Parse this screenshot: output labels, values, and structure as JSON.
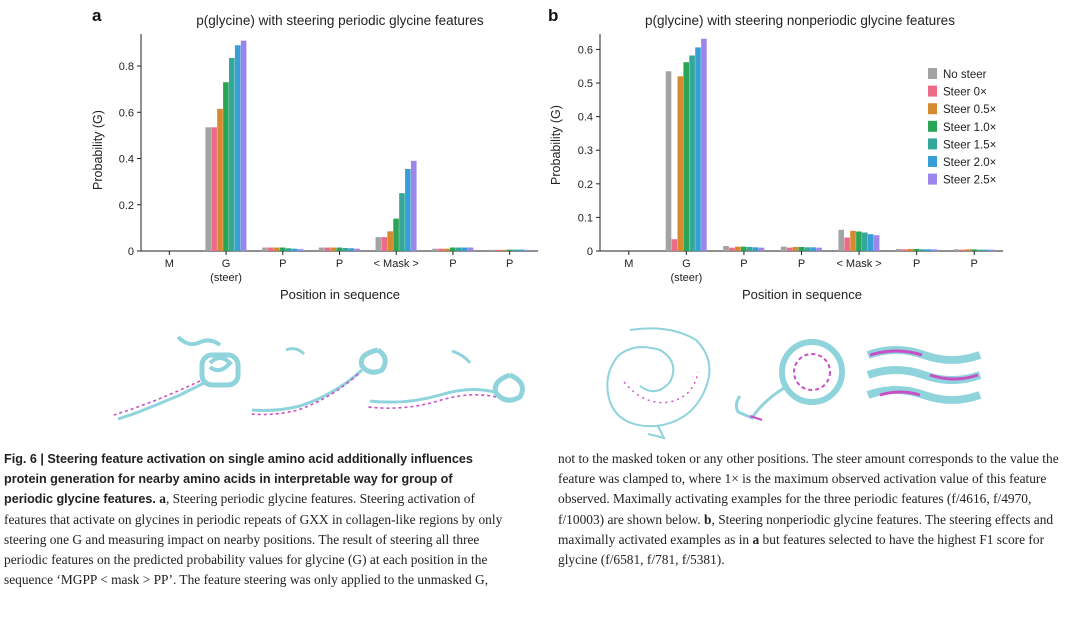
{
  "colors": {
    "no_steer": "#a3a3a3",
    "steer_0": "#ec6b86",
    "steer_05": "#d48a2f",
    "steer_10": "#2aa455",
    "steer_15": "#32a79a",
    "steer_20": "#3a9ed6",
    "steer_25": "#9c86ec",
    "axis": "#222222",
    "protein": "#8fd3dc",
    "glycine": "#c84fc4"
  },
  "chart_data": [
    {
      "type": "bar",
      "panel_label": "a",
      "title": "p(glycine) with steering periodic glycine features",
      "xlabel": "Position in sequence",
      "ylabel": "Probability (G)",
      "ylim": [
        0,
        0.93
      ],
      "yticks": [
        0,
        0.2,
        0.4,
        0.6,
        0.8
      ],
      "ytick_labels": [
        "0",
        "0.2",
        "0.4",
        "0.6",
        "0.8"
      ],
      "categories": [
        "M",
        "G",
        "P",
        "P",
        "< Mask >",
        "P",
        "P"
      ],
      "category_sublabels": [
        "",
        "(steer)",
        "",
        "",
        "",
        "",
        ""
      ],
      "series": [
        {
          "name": "No steer",
          "values": [
            0.0,
            0.535,
            0.015,
            0.015,
            0.06,
            0.01,
            0.005
          ]
        },
        {
          "name": "Steer 0×",
          "values": [
            0.0,
            0.535,
            0.015,
            0.015,
            0.06,
            0.01,
            0.005
          ]
        },
        {
          "name": "Steer 0.5×",
          "values": [
            0.0,
            0.615,
            0.015,
            0.015,
            0.085,
            0.01,
            0.005
          ]
        },
        {
          "name": "Steer 1.0×",
          "values": [
            0.0,
            0.73,
            0.015,
            0.015,
            0.14,
            0.015,
            0.006
          ]
        },
        {
          "name": "Steer 1.5×",
          "values": [
            0.0,
            0.835,
            0.012,
            0.013,
            0.25,
            0.015,
            0.006
          ]
        },
        {
          "name": "Steer 2.0×",
          "values": [
            0.0,
            0.89,
            0.01,
            0.012,
            0.355,
            0.015,
            0.006
          ]
        },
        {
          "name": "Steer 2.5×",
          "values": [
            0.0,
            0.91,
            0.008,
            0.01,
            0.39,
            0.015,
            0.005
          ]
        }
      ]
    },
    {
      "type": "bar",
      "panel_label": "b",
      "title": "p(glycine) with steering nonperiodic glycine features",
      "xlabel": "Position in sequence",
      "ylabel": "Probability (G)",
      "ylim": [
        0,
        0.64
      ],
      "yticks": [
        0,
        0.1,
        0.2,
        0.3,
        0.4,
        0.5,
        0.6
      ],
      "ytick_labels": [
        "0",
        "0.1",
        "0.2",
        "0.3",
        "0.4",
        "0.5",
        "0.6"
      ],
      "categories": [
        "M",
        "G",
        "P",
        "P",
        "< Mask >",
        "P",
        "P"
      ],
      "category_sublabels": [
        "",
        "(steer)",
        "",
        "",
        "",
        "",
        ""
      ],
      "legend": {
        "placement": "right",
        "entries": [
          "No steer",
          "Steer 0×",
          "Steer 0.5×",
          "Steer 1.0×",
          "Steer 1.5×",
          "Steer 2.0×",
          "Steer 2.5×"
        ]
      },
      "series": [
        {
          "name": "No steer",
          "values": [
            0.0,
            0.535,
            0.015,
            0.013,
            0.063,
            0.006,
            0.005
          ]
        },
        {
          "name": "Steer 0×",
          "values": [
            0.0,
            0.035,
            0.01,
            0.01,
            0.04,
            0.005,
            0.004
          ]
        },
        {
          "name": "Steer 0.5×",
          "values": [
            0.0,
            0.52,
            0.013,
            0.012,
            0.06,
            0.006,
            0.005
          ]
        },
        {
          "name": "Steer 1.0×",
          "values": [
            0.0,
            0.562,
            0.013,
            0.012,
            0.058,
            0.006,
            0.005
          ]
        },
        {
          "name": "Steer 1.5×",
          "values": [
            0.0,
            0.582,
            0.012,
            0.011,
            0.055,
            0.005,
            0.004
          ]
        },
        {
          "name": "Steer 2.0×",
          "values": [
            0.0,
            0.606,
            0.011,
            0.011,
            0.05,
            0.005,
            0.004
          ]
        },
        {
          "name": "Steer 2.5×",
          "values": [
            0.0,
            0.632,
            0.01,
            0.01,
            0.047,
            0.005,
            0.004
          ]
        }
      ]
    }
  ],
  "caption": {
    "heading": "Fig. 6 | Steering feature activation on single amino acid additionally influences protein generation for nearby amino acids in interpretable way for group of periodic glycine features.",
    "label_a": "a",
    "text_a": ", Steering periodic glycine features. Steering activation of features that activate on glycines in periodic repeats of GXX in collagen-like regions by only steering one G and measuring impact on nearby positions. The result of steering all three periodic features on the predicted probability values for glycine (G) at each position in the sequence ‘MGPP < mask > PP’. The feature steering was only applied to the unmasked G,",
    "text_a_cont": "not to the masked token or any other positions. The steer amount corresponds to the value the feature was clamped to, where 1× is the maximum observed activation value of this feature observed. Maximally activating examples for the three periodic features (f/4616, f/4970, f/10003) are shown below.",
    "label_b": "b",
    "text_b": ", Steering nonperiodic glycine features. The steering effects and maximally activated examples as in",
    "label_b_ref": "a",
    "text_b_end": "but features selected to have the highest F1 score for glycine (f/6581, f/781, f/5381)."
  }
}
